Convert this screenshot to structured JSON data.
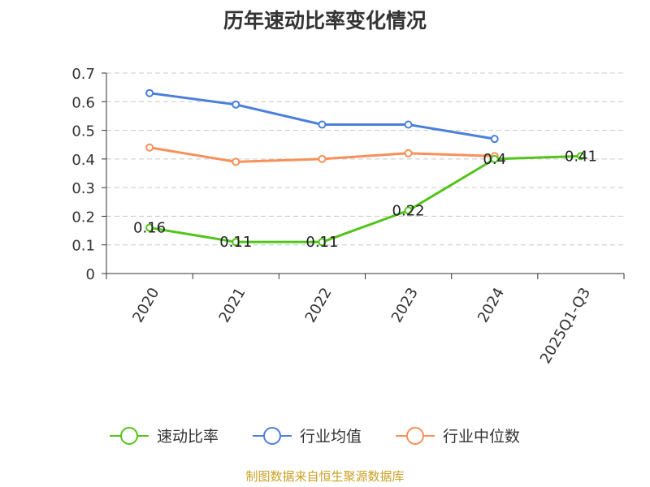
{
  "title": "历年速动比率变化情况",
  "source": "制图数据来自恒生聚源数据库",
  "chart_data": {
    "type": "line",
    "title": "历年速动比率变化情况",
    "categories": [
      "2020",
      "2021",
      "2022",
      "2023",
      "2024",
      "2025Q1-Q3"
    ],
    "y_ticks": [
      "0",
      "0.1",
      "0.2",
      "0.3",
      "0.4",
      "0.5",
      "0.6",
      "0.7"
    ],
    "ylim": [
      0,
      0.7
    ],
    "grid": true,
    "legend_position": "bottom",
    "series": [
      {
        "name": "速动比率",
        "color": "#52c41a",
        "values": [
          0.16,
          0.11,
          0.11,
          0.22,
          0.4,
          0.41
        ],
        "labels": [
          "0.16",
          "0.11",
          "0.11",
          "0.22",
          "0.4",
          "0.41"
        ]
      },
      {
        "name": "行业均值",
        "color": "#4a7fdc",
        "values": [
          0.63,
          0.59,
          0.52,
          0.52,
          0.47,
          null
        ]
      },
      {
        "name": "行业中位数",
        "color": "#f79059",
        "values": [
          0.44,
          0.39,
          0.4,
          0.42,
          0.41,
          null
        ]
      }
    ]
  }
}
